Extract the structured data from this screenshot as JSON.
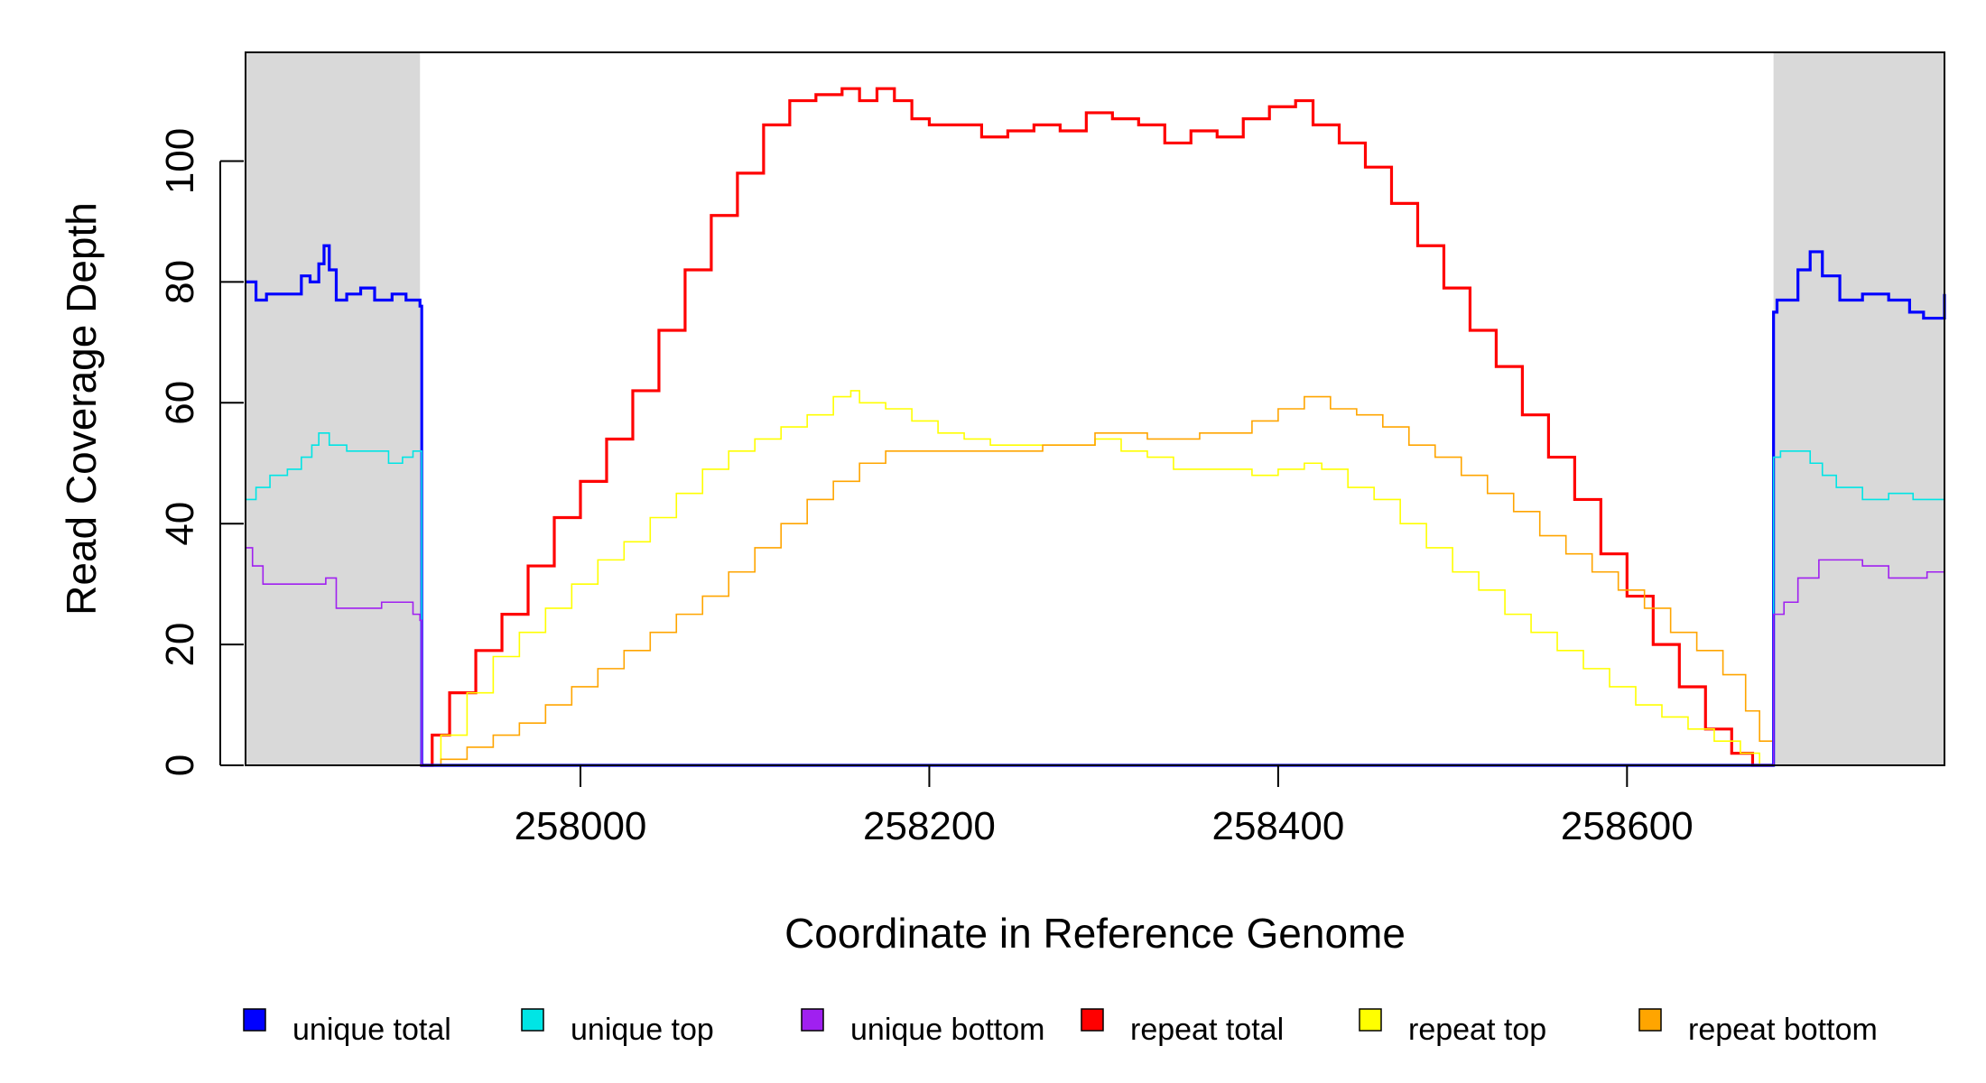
{
  "chart_data": {
    "type": "line",
    "xlabel": "Coordinate in Reference Genome",
    "ylabel": "Read Coverage Depth",
    "xlim": [
      257808,
      258782
    ],
    "ylim": [
      0,
      118
    ],
    "x_ticks": [
      258000,
      258200,
      258400,
      258600
    ],
    "y_ticks": [
      0,
      20,
      40,
      60,
      80,
      100
    ],
    "x_tick_labels": [
      "258000",
      "258200",
      "258400",
      "258600"
    ],
    "y_tick_labels": [
      "0",
      "20",
      "40",
      "60",
      "80",
      "100"
    ],
    "grid": false,
    "legend_position": "bottom",
    "shaded_regions": [
      {
        "x0": 257808,
        "x1": 257908,
        "color": "#d9d9d9"
      },
      {
        "x0": 258684,
        "x1": 258782,
        "color": "#d9d9d9"
      }
    ],
    "series": [
      {
        "name": "unique total",
        "color": "#0000ff",
        "x": [
          257808,
          257814,
          257820,
          257830,
          257840,
          257845,
          257850,
          257853,
          257856,
          257860,
          257866,
          257874,
          257882,
          257892,
          257900,
          257906,
          257908,
          257909,
          258683,
          258684,
          258686,
          258690,
          258698,
          258705,
          258712,
          258722,
          258735,
          258750,
          258762,
          258770,
          258782
        ],
        "y": [
          80,
          77,
          78,
          78,
          81,
          80,
          83,
          86,
          82,
          77,
          78,
          79,
          77,
          78,
          77,
          77,
          76,
          0,
          0,
          75,
          77,
          77,
          82,
          85,
          81,
          77,
          78,
          77,
          75,
          74,
          78
        ]
      },
      {
        "name": "unique top",
        "color": "#00e5e5",
        "x": [
          257808,
          257814,
          257822,
          257832,
          257840,
          257846,
          257850,
          257856,
          257866,
          257878,
          257890,
          257898,
          257904,
          257908,
          257909,
          258683,
          258684,
          258688,
          258696,
          258705,
          258712,
          258720,
          258735,
          258750,
          258764,
          258772,
          258782
        ],
        "y": [
          44,
          46,
          48,
          49,
          51,
          53,
          55,
          53,
          52,
          52,
          50,
          51,
          52,
          52,
          0,
          0,
          51,
          52,
          52,
          50,
          48,
          46,
          44,
          45,
          44,
          44,
          45
        ],
        "line_width": 1
      },
      {
        "name": "unique bottom",
        "color": "#a020f0",
        "x": [
          257808,
          257812,
          257818,
          257830,
          257842,
          257848,
          257854,
          257860,
          257872,
          257886,
          257896,
          257904,
          257908,
          257909,
          258683,
          258684,
          258690,
          258698,
          258710,
          258720,
          258735,
          258750,
          258765,
          258772,
          258782
        ],
        "y": [
          36,
          33,
          30,
          30,
          30,
          30,
          31,
          26,
          26,
          27,
          27,
          25,
          24,
          0,
          0,
          25,
          27,
          31,
          34,
          34,
          33,
          31,
          31,
          32,
          33
        ],
        "line_width": 1
      },
      {
        "name": "repeat total",
        "color": "#ff0000",
        "x": [
          257908,
          257915,
          257925,
          257940,
          257955,
          257970,
          257985,
          258000,
          258015,
          258030,
          258045,
          258060,
          258075,
          258090,
          258105,
          258120,
          258135,
          258150,
          258160,
          258170,
          258180,
          258190,
          258200,
          258215,
          258230,
          258245,
          258260,
          258275,
          258290,
          258305,
          258320,
          258335,
          258350,
          258365,
          258380,
          258395,
          258410,
          258420,
          258435,
          258450,
          258465,
          258480,
          258495,
          258510,
          258525,
          258540,
          258555,
          258570,
          258585,
          258600,
          258615,
          258630,
          258645,
          258660,
          258672,
          258680,
          258684
        ],
        "y": [
          0,
          5,
          12,
          19,
          25,
          33,
          41,
          47,
          54,
          62,
          72,
          82,
          91,
          98,
          106,
          110,
          111,
          112,
          110,
          112,
          110,
          107,
          106,
          106,
          104,
          105,
          106,
          105,
          108,
          107,
          106,
          103,
          105,
          104,
          107,
          109,
          110,
          106,
          103,
          99,
          93,
          86,
          79,
          72,
          66,
          58,
          51,
          44,
          35,
          28,
          20,
          13,
          6,
          2,
          0,
          0,
          0
        ],
        "line_width": 2
      },
      {
        "name": "repeat top",
        "color": "#ffff00",
        "x": [
          257908,
          257920,
          257935,
          257950,
          257965,
          257980,
          257995,
          258010,
          258025,
          258040,
          258055,
          258070,
          258085,
          258100,
          258115,
          258130,
          258145,
          258155,
          258160,
          258175,
          258190,
          258205,
          258220,
          258235,
          258250,
          258265,
          258280,
          258295,
          258310,
          258325,
          258340,
          258355,
          258370,
          258385,
          258400,
          258415,
          258425,
          258440,
          258455,
          258470,
          258485,
          258500,
          258515,
          258530,
          258545,
          258560,
          258575,
          258590,
          258605,
          258620,
          258635,
          258650,
          258665,
          258676,
          258684
        ],
        "y": [
          0,
          5,
          12,
          18,
          22,
          26,
          30,
          34,
          37,
          41,
          45,
          49,
          52,
          54,
          56,
          58,
          61,
          62,
          60,
          59,
          57,
          55,
          54,
          53,
          53,
          53,
          53,
          54,
          52,
          51,
          49,
          49,
          49,
          48,
          49,
          50,
          49,
          46,
          44,
          40,
          36,
          32,
          29,
          25,
          22,
          19,
          16,
          13,
          10,
          8,
          6,
          4,
          2,
          0,
          0
        ],
        "line_width": 1
      },
      {
        "name": "repeat bottom",
        "color": "#ffa500",
        "x": [
          257908,
          257920,
          257935,
          257950,
          257965,
          257980,
          257995,
          258010,
          258025,
          258040,
          258055,
          258070,
          258085,
          258100,
          258115,
          258130,
          258145,
          258160,
          258175,
          258190,
          258205,
          258220,
          258235,
          258250,
          258265,
          258280,
          258295,
          258310,
          258325,
          258340,
          258355,
          258370,
          258385,
          258400,
          258415,
          258430,
          258445,
          258460,
          258475,
          258490,
          258505,
          258520,
          258535,
          258550,
          258565,
          258580,
          258595,
          258610,
          258625,
          258640,
          258655,
          258668,
          258676,
          258684
        ],
        "y": [
          0,
          1,
          3,
          5,
          7,
          10,
          13,
          16,
          19,
          22,
          25,
          28,
          32,
          36,
          40,
          44,
          47,
          50,
          52,
          52,
          52,
          52,
          52,
          52,
          53,
          53,
          55,
          55,
          54,
          54,
          55,
          55,
          57,
          59,
          61,
          59,
          58,
          56,
          53,
          51,
          48,
          45,
          42,
          38,
          35,
          32,
          29,
          26,
          22,
          19,
          15,
          9,
          4,
          0
        ],
        "line_width": 1
      }
    ]
  }
}
